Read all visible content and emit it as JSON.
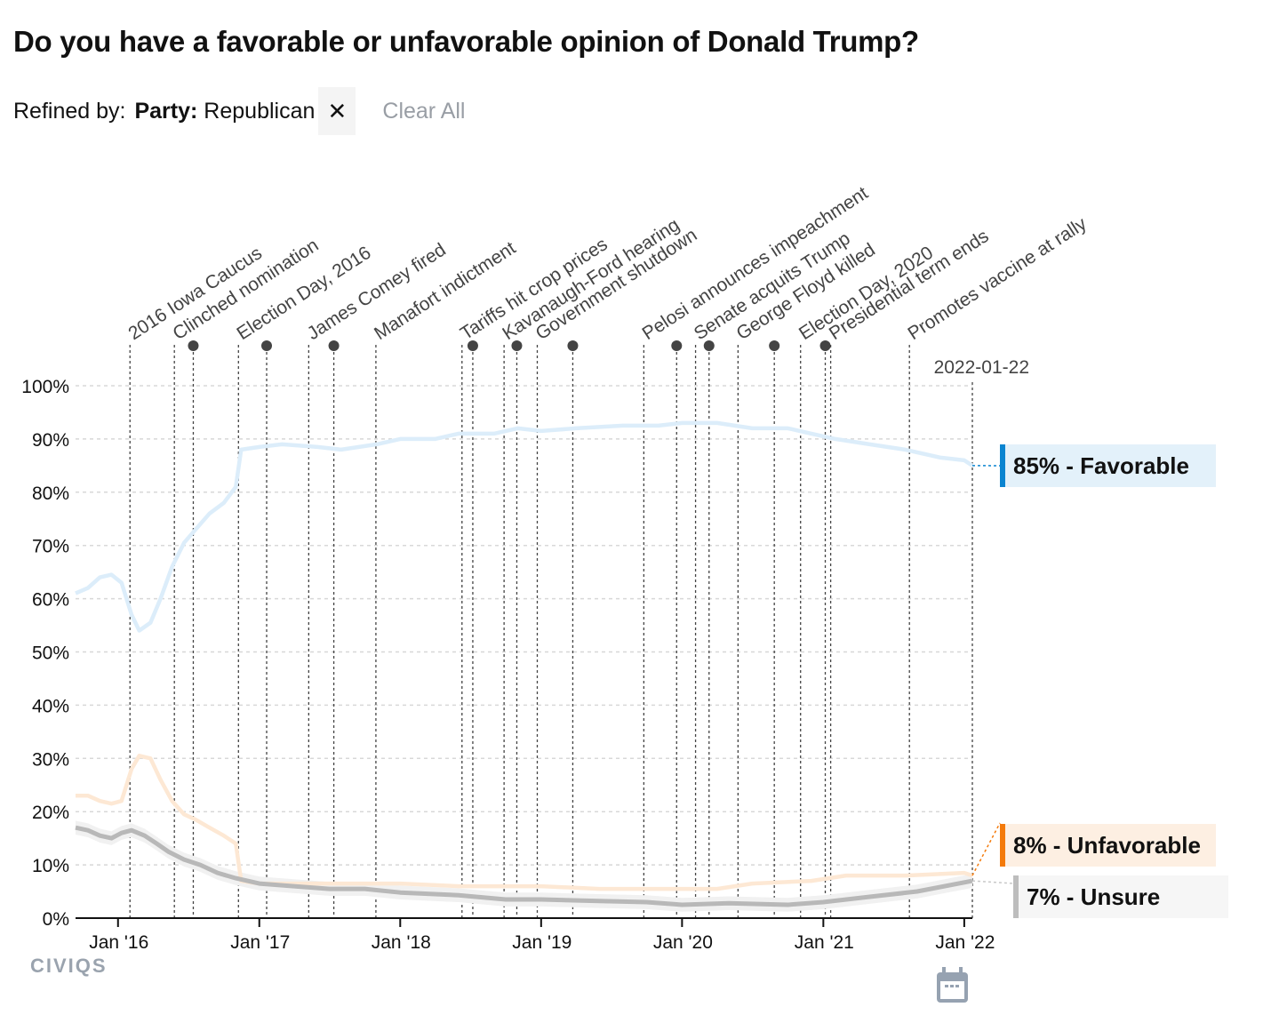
{
  "title": "Do you have a favorable or unfavorable opinion of Donald Trump?",
  "refine": {
    "label": "Refined by:",
    "filter_key": "Party:",
    "filter_value": "Republican",
    "remove_icon": "close-icon",
    "clear_all": "Clear All"
  },
  "logo": "CIVIQS",
  "calendar_icon": "calendar-icon",
  "chart_data": {
    "type": "line",
    "x_range": [
      "2015-09-13",
      "2022-01-22"
    ],
    "ylim": [
      0,
      100
    ],
    "y_ticks": [
      "0%",
      "10%",
      "20%",
      "30%",
      "40%",
      "50%",
      "60%",
      "70%",
      "80%",
      "90%",
      "100%"
    ],
    "x_ticks": [
      {
        "date": "2016-01-01",
        "label": "Jan '16"
      },
      {
        "date": "2017-01-01",
        "label": "Jan '17"
      },
      {
        "date": "2018-01-01",
        "label": "Jan '18"
      },
      {
        "date": "2019-01-01",
        "label": "Jan '19"
      },
      {
        "date": "2020-01-01",
        "label": "Jan '20"
      },
      {
        "date": "2021-01-01",
        "label": "Jan '21"
      },
      {
        "date": "2022-01-01",
        "label": "Jan '22"
      }
    ],
    "grid": "horizontal dashed",
    "cursor_date": "2022-01-22",
    "series": [
      {
        "name": "Favorable",
        "color": "#dcedfa",
        "accent": "#0a84d0",
        "label_bg": "#e3f1fa",
        "end_label": "85% - Favorable",
        "points": [
          [
            "2015-09-13",
            61
          ],
          [
            "2015-10-15",
            62
          ],
          [
            "2015-11-15",
            64
          ],
          [
            "2015-12-15",
            64.5
          ],
          [
            "2016-01-10",
            63
          ],
          [
            "2016-02-05",
            57
          ],
          [
            "2016-02-25",
            54
          ],
          [
            "2016-03-25",
            55.5
          ],
          [
            "2016-04-20",
            60
          ],
          [
            "2016-05-20",
            66
          ],
          [
            "2016-06-20",
            70.5
          ],
          [
            "2016-07-20",
            73
          ],
          [
            "2016-08-25",
            76
          ],
          [
            "2016-10-01",
            78
          ],
          [
            "2016-11-01",
            81
          ],
          [
            "2016-11-15",
            88
          ],
          [
            "2017-01-01",
            88.5
          ],
          [
            "2017-03-01",
            89
          ],
          [
            "2017-06-01",
            88.5
          ],
          [
            "2017-08-01",
            88
          ],
          [
            "2017-11-01",
            89
          ],
          [
            "2018-01-01",
            90
          ],
          [
            "2018-04-01",
            90
          ],
          [
            "2018-06-01",
            91
          ],
          [
            "2018-09-01",
            91
          ],
          [
            "2018-11-01",
            92
          ],
          [
            "2019-01-01",
            91.5
          ],
          [
            "2019-04-01",
            92
          ],
          [
            "2019-08-01",
            92.5
          ],
          [
            "2019-11-01",
            92.5
          ],
          [
            "2020-01-01",
            93
          ],
          [
            "2020-04-01",
            93
          ],
          [
            "2020-07-01",
            92
          ],
          [
            "2020-10-01",
            92
          ],
          [
            "2020-12-01",
            91
          ],
          [
            "2021-02-01",
            90
          ],
          [
            "2021-05-01",
            89
          ],
          [
            "2021-08-01",
            88
          ],
          [
            "2021-11-01",
            86.5
          ],
          [
            "2022-01-01",
            86
          ],
          [
            "2022-01-22",
            85
          ]
        ]
      },
      {
        "name": "Unfavorable",
        "color": "#fde8d4",
        "accent": "#f47a0a",
        "label_bg": "#fdefe2",
        "end_label": "8% - Unfavorable",
        "points": [
          [
            "2015-09-13",
            23
          ],
          [
            "2015-10-15",
            23
          ],
          [
            "2015-11-15",
            22
          ],
          [
            "2015-12-15",
            21.5
          ],
          [
            "2016-01-10",
            22
          ],
          [
            "2016-02-05",
            28
          ],
          [
            "2016-02-25",
            30.5
          ],
          [
            "2016-03-25",
            30
          ],
          [
            "2016-04-20",
            26
          ],
          [
            "2016-05-20",
            22
          ],
          [
            "2016-06-20",
            19.5
          ],
          [
            "2016-07-20",
            18.5
          ],
          [
            "2016-08-25",
            17
          ],
          [
            "2016-10-01",
            15.5
          ],
          [
            "2016-11-01",
            14
          ],
          [
            "2016-11-15",
            7
          ],
          [
            "2017-01-01",
            6.5
          ],
          [
            "2017-06-01",
            6.5
          ],
          [
            "2018-01-01",
            6.5
          ],
          [
            "2018-06-01",
            6
          ],
          [
            "2019-01-01",
            6
          ],
          [
            "2019-06-01",
            5.5
          ],
          [
            "2020-01-01",
            5.5
          ],
          [
            "2020-04-01",
            5.5
          ],
          [
            "2020-07-01",
            6.5
          ],
          [
            "2020-12-01",
            7
          ],
          [
            "2021-03-01",
            8
          ],
          [
            "2021-08-01",
            8
          ],
          [
            "2022-01-01",
            8.5
          ],
          [
            "2022-01-22",
            8
          ]
        ]
      },
      {
        "name": "Unsure",
        "color": "#b8b8b8",
        "accent": "#bdbdbd",
        "label_bg": "#f6f6f6",
        "end_label": "7% - Unsure",
        "points": [
          [
            "2015-09-13",
            17
          ],
          [
            "2015-10-15",
            16.5
          ],
          [
            "2015-11-15",
            15.5
          ],
          [
            "2015-12-15",
            15
          ],
          [
            "2016-01-10",
            16
          ],
          [
            "2016-02-05",
            16.5
          ],
          [
            "2016-03-10",
            15.5
          ],
          [
            "2016-04-10",
            14
          ],
          [
            "2016-05-10",
            12.5
          ],
          [
            "2016-06-20",
            11
          ],
          [
            "2016-08-01",
            10
          ],
          [
            "2016-09-15",
            8.5
          ],
          [
            "2016-11-01",
            7.5
          ],
          [
            "2017-01-01",
            6.5
          ],
          [
            "2017-04-01",
            6
          ],
          [
            "2017-07-01",
            5.5
          ],
          [
            "2017-10-01",
            5.5
          ],
          [
            "2018-01-01",
            4.8
          ],
          [
            "2018-06-01",
            4.3
          ],
          [
            "2018-10-01",
            3.5
          ],
          [
            "2019-01-01",
            3.5
          ],
          [
            "2019-06-01",
            3.2
          ],
          [
            "2019-10-01",
            3
          ],
          [
            "2020-01-01",
            2.5
          ],
          [
            "2020-05-01",
            2.8
          ],
          [
            "2020-10-01",
            2.5
          ],
          [
            "2021-01-01",
            3
          ],
          [
            "2021-05-01",
            4
          ],
          [
            "2021-09-01",
            5
          ],
          [
            "2022-01-22",
            7
          ]
        ]
      }
    ],
    "events": [
      {
        "date": "2016-02-01",
        "label": "2016 Iowa Caucus"
      },
      {
        "date": "2016-05-26",
        "label": "Clinched nomination"
      },
      {
        "date": "2016-07-14",
        "label": ""
      },
      {
        "date": "2016-11-08",
        "label": "Election Day, 2016"
      },
      {
        "date": "2017-01-20",
        "label": ""
      },
      {
        "date": "2017-05-09",
        "label": "James Comey fired"
      },
      {
        "date": "2017-07-13",
        "label": ""
      },
      {
        "date": "2017-10-30",
        "label": "Manafort indictment"
      },
      {
        "date": "2018-06-10",
        "label": "Tariffs hit crop prices"
      },
      {
        "date": "2018-07-08",
        "label": ""
      },
      {
        "date": "2018-09-27",
        "label": "Kavanaugh-Ford hearing"
      },
      {
        "date": "2018-10-30",
        "label": ""
      },
      {
        "date": "2018-12-22",
        "label": "Government shutdown"
      },
      {
        "date": "2019-03-24",
        "label": ""
      },
      {
        "date": "2019-09-24",
        "label": "Pelosi announces impeachment"
      },
      {
        "date": "2019-12-18",
        "label": ""
      },
      {
        "date": "2020-02-05",
        "label": "Senate acquits Trump"
      },
      {
        "date": "2020-03-11",
        "label": ""
      },
      {
        "date": "2020-05-25",
        "label": "George Floyd killed"
      },
      {
        "date": "2020-08-27",
        "label": ""
      },
      {
        "date": "2020-11-03",
        "label": "Election Day, 2020"
      },
      {
        "date": "2021-01-06",
        "label": ""
      },
      {
        "date": "2021-01-20",
        "label": "Presidential term ends"
      },
      {
        "date": "2021-08-12",
        "label": "Promotes vaccine at rally"
      }
    ]
  }
}
